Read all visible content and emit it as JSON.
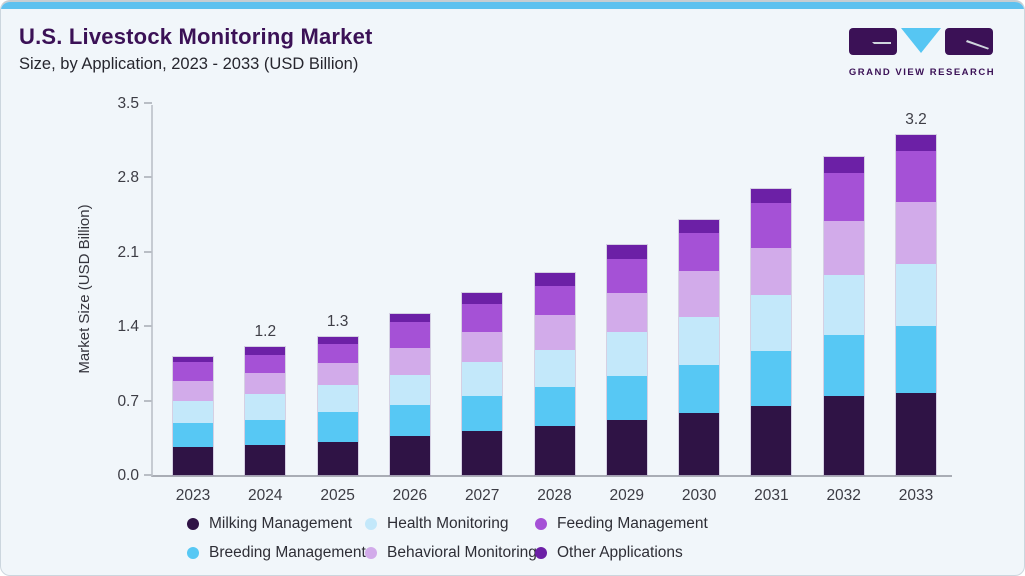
{
  "header": {
    "title": "U.S. Livestock Monitoring Market",
    "subtitle": "Size, by Application, 2023 - 2033 (USD Billion)",
    "logo_text": "GRAND VIEW RESEARCH"
  },
  "chart_data": {
    "type": "bar",
    "stacked": true,
    "title": "U.S. Livestock Monitoring Market Size, by Application, 2023 - 2033 (USD Billion)",
    "xlabel": "",
    "ylabel": "Market Size (USD Billion)",
    "ylim": [
      0,
      3.5
    ],
    "ytick_labels": [
      "0.0",
      "0.7",
      "1.4",
      "2.1",
      "2.8",
      "3.5"
    ],
    "grid": false,
    "legend_position": "bottom",
    "categories": [
      "2023",
      "2024",
      "2025",
      "2026",
      "2027",
      "2028",
      "2029",
      "2030",
      "2031",
      "2032",
      "2033"
    ],
    "series": [
      {
        "name": "Milking Management",
        "color": "#2f1345",
        "values": [
          0.26,
          0.28,
          0.31,
          0.37,
          0.41,
          0.46,
          0.52,
          0.58,
          0.65,
          0.74,
          0.77
        ]
      },
      {
        "name": "Breeding Management",
        "color": "#57c8f4",
        "values": [
          0.23,
          0.24,
          0.28,
          0.29,
          0.33,
          0.37,
          0.41,
          0.46,
          0.52,
          0.58,
          0.63
        ]
      },
      {
        "name": "Health Monitoring",
        "color": "#c3e8fa",
        "values": [
          0.21,
          0.24,
          0.26,
          0.28,
          0.32,
          0.35,
          0.42,
          0.45,
          0.52,
          0.56,
          0.59
        ]
      },
      {
        "name": "Behavioral Monitoring",
        "color": "#d2abea",
        "values": [
          0.19,
          0.2,
          0.2,
          0.26,
          0.29,
          0.33,
          0.36,
          0.43,
          0.45,
          0.51,
          0.58
        ]
      },
      {
        "name": "Feeding Management",
        "color": "#a551d6",
        "values": [
          0.17,
          0.17,
          0.18,
          0.24,
          0.26,
          0.27,
          0.32,
          0.36,
          0.42,
          0.45,
          0.48
        ]
      },
      {
        "name": "Other Applications",
        "color": "#6c20a6",
        "values": [
          0.05,
          0.07,
          0.07,
          0.08,
          0.1,
          0.12,
          0.13,
          0.12,
          0.13,
          0.15,
          0.15
        ]
      }
    ],
    "bar_total_labels": [
      "",
      "1.2",
      "1.3",
      "",
      "",
      "",
      "",
      "",
      "",
      "",
      "3.2"
    ]
  },
  "legend": {
    "items": [
      {
        "label": "Milking Management",
        "color": "#2f1345"
      },
      {
        "label": "Health Monitoring",
        "color": "#c3e8fa"
      },
      {
        "label": "Feeding Management",
        "color": "#a551d6"
      },
      {
        "label": "Breeding Management",
        "color": "#57c8f4"
      },
      {
        "label": "Behavioral Monitoring",
        "color": "#d2abea"
      },
      {
        "label": "Other Applications",
        "color": "#6c20a6"
      }
    ]
  },
  "colors": {
    "accent_bar": "#5ec1ef",
    "card_background": "#f1f6fa",
    "title_text": "#3b1156",
    "logo_dark": "#3b1156",
    "logo_triangle": "#56c6f3"
  }
}
